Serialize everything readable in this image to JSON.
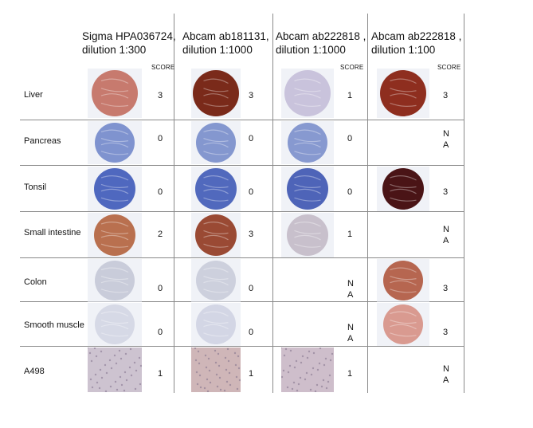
{
  "columns": [
    {
      "header_line1": "Sigma HPA036724,",
      "header_line2": "dilution 1:300",
      "score_label": "SCORE"
    },
    {
      "header_line1": "Abcam ab181131,",
      "header_line2": "dilution 1:1000",
      "score_label": ""
    },
    {
      "header_line1": "Abcam ab222818 ,",
      "header_line2": "dilution 1:1000",
      "score_label": "SCORE"
    },
    {
      "header_line1": "Abcam ab222818 ,",
      "header_line2": "dilution 1:100",
      "score_label": "SCORE"
    }
  ],
  "rows": [
    {
      "tissue": "Liver",
      "scores": [
        "3",
        "3",
        "1",
        "3"
      ],
      "stains": [
        "#c77a6e",
        "#7a2a1a",
        "#c9c3dc",
        "#8e2e1f"
      ]
    },
    {
      "tissue": "Pancreas",
      "scores": [
        "0",
        "0",
        "0",
        "N\nA"
      ],
      "stains": [
        "#7f93cf",
        "#8497cf",
        "#8799d0",
        ""
      ]
    },
    {
      "tissue": "Tonsil",
      "scores": [
        "0",
        "0",
        "0",
        "3"
      ],
      "stains": [
        "#4f68bf",
        "#5169bd",
        "#4e64b8",
        "#4a1416"
      ]
    },
    {
      "tissue": "Small intestine",
      "scores": [
        "2",
        "3",
        "1",
        "N\nA"
      ],
      "stains": [
        "#b9704f",
        "#9a4a34",
        "#c8c0cc",
        ""
      ]
    },
    {
      "tissue": "Colon",
      "scores": [
        "0",
        "0",
        "N\nA",
        "3"
      ],
      "stains": [
        "#c9ccda",
        "#cdd0dd",
        "",
        "#b66650"
      ]
    },
    {
      "tissue": "Smooth muscle",
      "scores": [
        "0",
        "0",
        "N\nA",
        "3"
      ],
      "stains": [
        "#d6d9e6",
        "#d3d6e5",
        "",
        "#d99a90"
      ]
    },
    {
      "tissue": "A498",
      "scores": [
        "1",
        "1",
        "1",
        "N\nA"
      ],
      "stains": [
        "#c4b9c8",
        "#c7a9ab",
        "#c5b3c2",
        ""
      ]
    }
  ]
}
